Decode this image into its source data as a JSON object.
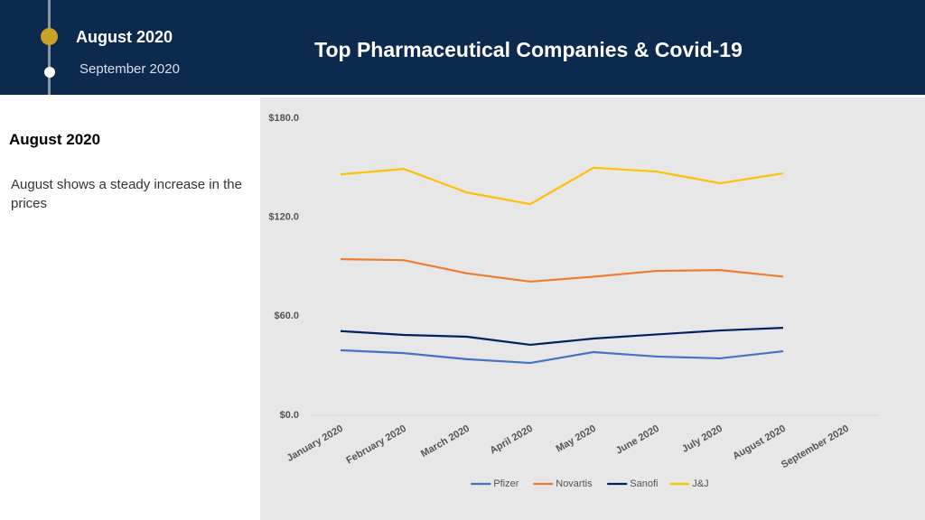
{
  "header": {
    "title": "Top Pharmaceutical Companies & Covid-19"
  },
  "timeline": {
    "items": [
      "August 2020",
      "September 2020"
    ]
  },
  "panel": {
    "heading": "August 2020",
    "text": "August shows a steady increase in the prices"
  },
  "chart_data": {
    "type": "line",
    "categories": [
      "January 2020",
      "February 2020",
      "March 2020",
      "April 2020",
      "May 2020",
      "June 2020",
      "July 2020",
      "August 2020",
      "September 2020"
    ],
    "series": [
      {
        "name": "Pfizer",
        "color": "#4472c4",
        "values": [
          39.4,
          37.7,
          34,
          31.7,
          38.3,
          35.6,
          34.5,
          38.8,
          null
        ]
      },
      {
        "name": "Novartis",
        "color": "#ed7d31",
        "values": [
          94.6,
          94,
          86,
          81,
          84,
          87.5,
          88,
          84,
          null
        ]
      },
      {
        "name": "Sanofi",
        "color": "#002060",
        "values": [
          51,
          48.7,
          47.6,
          42.7,
          46.5,
          49,
          51.4,
          53,
          null
        ]
      },
      {
        "name": "J&J",
        "color": "#ffc000",
        "values": [
          146,
          149.3,
          135,
          128,
          150,
          147.7,
          140.6,
          146.6,
          null
        ]
      }
    ],
    "ylim": [
      0,
      180
    ],
    "yticks": [
      {
        "value": 0,
        "label": "$0.0"
      },
      {
        "value": 60,
        "label": "$60.0"
      },
      {
        "value": 120,
        "label": "$120.0"
      },
      {
        "value": 180,
        "label": "$180.0"
      }
    ],
    "grid": false,
    "legend": "bottom"
  }
}
